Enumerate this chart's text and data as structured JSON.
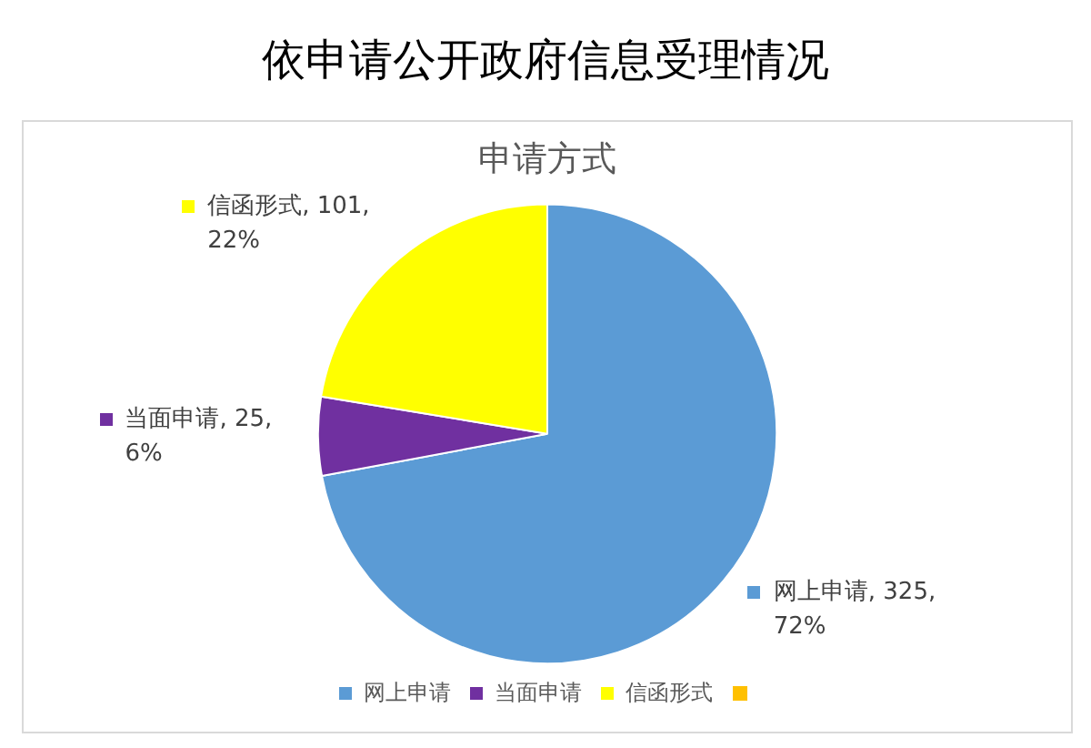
{
  "chart_data": {
    "type": "pie",
    "title": "依申请公开政府信息受理情况",
    "subtitle": "申请方式",
    "categories": [
      "网上申请",
      "当面申请",
      "信函形式",
      null
    ],
    "values": [
      325,
      25,
      101,
      0
    ],
    "colors": [
      "#5b9bd5",
      "#7030a0",
      "#ffff00",
      "#ffc000"
    ],
    "value_labels": [
      "网上申请, 325, 72%",
      "当面申请, 25, 6%",
      "信函形式, 101, 22%",
      null
    ],
    "legend": "bottom"
  }
}
